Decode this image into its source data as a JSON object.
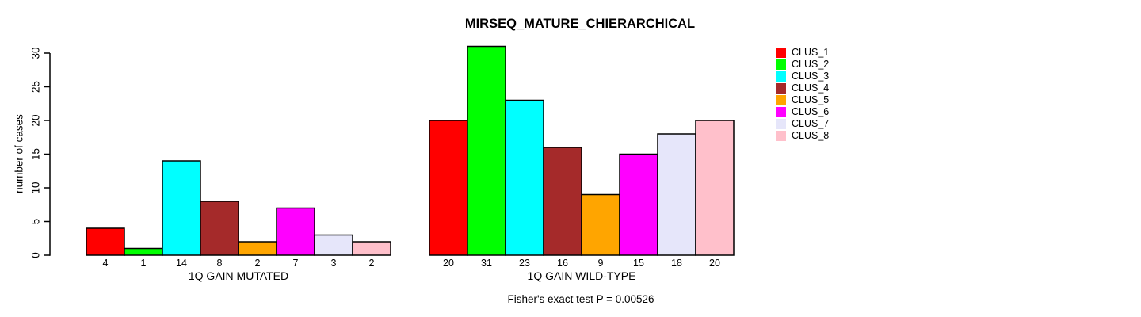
{
  "chart_data": {
    "type": "bar",
    "title": "MIRSEQ_MATURE_CHIERARCHICAL",
    "ylabel": "number of cases",
    "ylim": [
      0,
      31
    ],
    "yticks": [
      0,
      5,
      10,
      15,
      20,
      25,
      30
    ],
    "grid": false,
    "legend_position": "right-outside",
    "clusters": [
      "CLUS_1",
      "CLUS_2",
      "CLUS_3",
      "CLUS_4",
      "CLUS_5",
      "CLUS_6",
      "CLUS_7",
      "CLUS_8"
    ],
    "cluster_colors": [
      "#FF0000",
      "#00FF00",
      "#00FFFF",
      "#A52A2A",
      "#FFA500",
      "#FF00FF",
      "#E6E6FA",
      "#FFC0CB"
    ],
    "groups": [
      {
        "label": "1Q GAIN MUTATED",
        "values": [
          4,
          1,
          14,
          8,
          2,
          7,
          3,
          2
        ]
      },
      {
        "label": "1Q GAIN WILD-TYPE",
        "values": [
          20,
          31,
          23,
          16,
          9,
          15,
          18,
          20
        ]
      }
    ],
    "annotation": "Fisher's exact test P = 0.00526"
  }
}
